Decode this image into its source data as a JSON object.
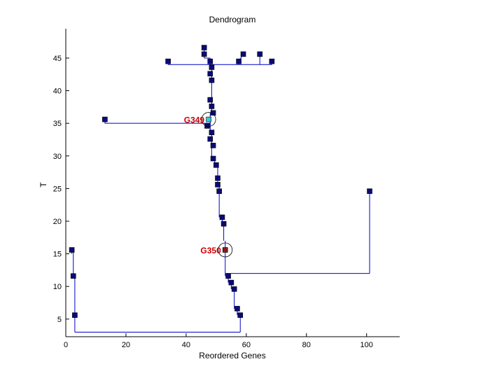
{
  "chart_data": {
    "type": "dendrogram",
    "title": "Dendrogram",
    "xlabel": "Reordered Genes",
    "ylabel": "T",
    "xlim": [
      0,
      111
    ],
    "ylim": [
      2.3,
      49.5
    ],
    "xticks": [
      0,
      20,
      40,
      60,
      80,
      100
    ],
    "yticks": [
      5,
      10,
      15,
      20,
      25,
      30,
      35,
      40,
      45
    ],
    "grid": false,
    "colors": {
      "line": "#0000cd",
      "marker": "#0a0a7a",
      "highlight_g349": "#33cccc",
      "highlight_g350": "#8b1a1a",
      "label": "#cc0000"
    },
    "nodes": [
      {
        "x": 46,
        "y": 46.6
      },
      {
        "x": 46,
        "y": 45.6
      },
      {
        "x": 34,
        "y": 44.5
      },
      {
        "x": 48,
        "y": 44.5
      },
      {
        "x": 57.5,
        "y": 44.5
      },
      {
        "x": 59,
        "y": 45.6
      },
      {
        "x": 64.5,
        "y": 45.6
      },
      {
        "x": 68.5,
        "y": 44.5
      },
      {
        "x": 48.5,
        "y": 43.6
      },
      {
        "x": 48,
        "y": 42.6
      },
      {
        "x": 48.5,
        "y": 41.6
      },
      {
        "x": 48,
        "y": 38.6
      },
      {
        "x": 48.5,
        "y": 37.6
      },
      {
        "x": 49,
        "y": 36.6
      },
      {
        "x": 13,
        "y": 35.6
      },
      {
        "x": 47,
        "y": 34.6
      },
      {
        "x": 48.5,
        "y": 33.6
      },
      {
        "x": 48,
        "y": 32.6
      },
      {
        "x": 49,
        "y": 31.6
      },
      {
        "x": 49,
        "y": 29.6
      },
      {
        "x": 50,
        "y": 28.6
      },
      {
        "x": 50.5,
        "y": 26.6
      },
      {
        "x": 50.5,
        "y": 25.6
      },
      {
        "x": 51,
        "y": 24.6
      },
      {
        "x": 101,
        "y": 24.6
      },
      {
        "x": 52,
        "y": 20.6
      },
      {
        "x": 52.5,
        "y": 19.6
      },
      {
        "x": 2,
        "y": 15.6
      },
      {
        "x": 2.5,
        "y": 11.6
      },
      {
        "x": 54,
        "y": 11.6
      },
      {
        "x": 55,
        "y": 10.6
      },
      {
        "x": 56,
        "y": 9.6
      },
      {
        "x": 57,
        "y": 6.6
      },
      {
        "x": 58,
        "y": 5.6
      },
      {
        "x": 3,
        "y": 5.6
      }
    ],
    "highlighted": [
      {
        "label": "G349",
        "x": 47.5,
        "y": 35.6,
        "color_key": "highlight_g349"
      },
      {
        "label": "G350",
        "x": 53,
        "y": 15.6,
        "color_key": "highlight_g350"
      }
    ],
    "segments": [
      [
        [
          34,
          44.5
        ],
        [
          34,
          44
        ]
      ],
      [
        [
          34,
          44
        ],
        [
          68.5,
          44
        ]
      ],
      [
        [
          68.5,
          44
        ],
        [
          68.5,
          44.5
        ]
      ],
      [
        [
          64.5,
          45.6
        ],
        [
          64.5,
          44
        ]
      ],
      [
        [
          59,
          45.6
        ],
        [
          57.5,
          44.5
        ]
      ],
      [
        [
          57.5,
          44.5
        ],
        [
          57.5,
          44
        ]
      ],
      [
        [
          46,
          46.6
        ],
        [
          46,
          45
        ]
      ],
      [
        [
          46,
          45
        ],
        [
          48,
          45
        ]
      ],
      [
        [
          48,
          45
        ],
        [
          48,
          44
        ]
      ],
      [
        [
          48.5,
          44
        ],
        [
          48.5,
          36.6
        ]
      ],
      [
        [
          13,
          35.6
        ],
        [
          13,
          35
        ]
      ],
      [
        [
          13,
          35
        ],
        [
          48,
          35
        ]
      ],
      [
        [
          48,
          35
        ],
        [
          48,
          34.6
        ]
      ],
      [
        [
          49,
          36.6
        ],
        [
          48,
          36.6
        ]
      ],
      [
        [
          48,
          36.6
        ],
        [
          48,
          33.6
        ]
      ],
      [
        [
          48.5,
          33.6
        ],
        [
          48.5,
          29.6
        ]
      ],
      [
        [
          49.5,
          29.6
        ],
        [
          49.5,
          28.6
        ]
      ],
      [
        [
          50.5,
          28.6
        ],
        [
          50.5,
          26
        ]
      ],
      [
        [
          51,
          26
        ],
        [
          51,
          24.6
        ]
      ],
      [
        [
          51,
          24.6
        ],
        [
          51,
          20.6
        ]
      ],
      [
        [
          52,
          20.6
        ],
        [
          52,
          19.6
        ]
      ],
      [
        [
          52.5,
          19.6
        ],
        [
          52.5,
          17
        ]
      ],
      [
        [
          53,
          17
        ],
        [
          53,
          12
        ]
      ],
      [
        [
          53,
          12
        ],
        [
          101,
          12
        ]
      ],
      [
        [
          101,
          12
        ],
        [
          101,
          24.6
        ]
      ],
      [
        [
          53,
          12
        ],
        [
          53,
          11.6
        ]
      ],
      [
        [
          54,
          11.6
        ],
        [
          54,
          10.6
        ]
      ],
      [
        [
          55,
          10.6
        ],
        [
          55,
          9.6
        ]
      ],
      [
        [
          56,
          9.6
        ],
        [
          56,
          6.6
        ]
      ],
      [
        [
          57,
          6.6
        ],
        [
          57,
          5.6
        ]
      ],
      [
        [
          58,
          5.6
        ],
        [
          58,
          3
        ]
      ],
      [
        [
          3,
          3
        ],
        [
          58,
          3
        ]
      ],
      [
        [
          3,
          3
        ],
        [
          3,
          5.6
        ]
      ],
      [
        [
          3,
          5.6
        ],
        [
          3,
          11.6
        ]
      ],
      [
        [
          2.5,
          11.6
        ],
        [
          2.5,
          15.6
        ]
      ],
      [
        [
          2,
          15.6
        ],
        [
          2,
          15
        ]
      ]
    ]
  }
}
